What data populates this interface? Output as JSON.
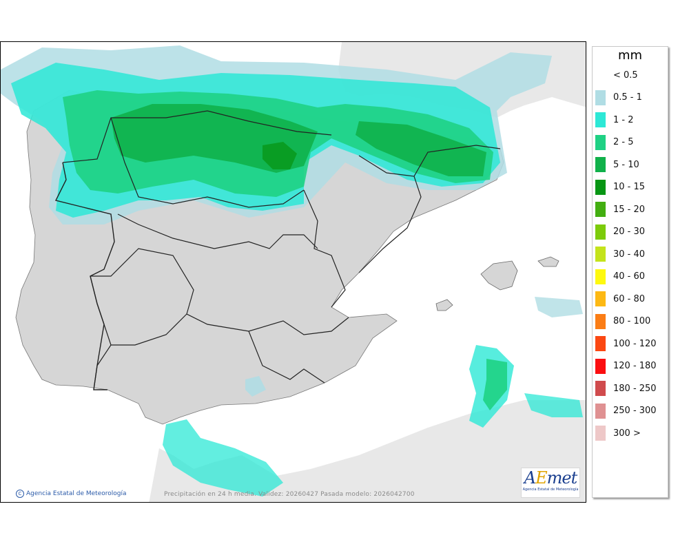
{
  "legend": {
    "unit": "mm",
    "items": [
      {
        "label": "< 0.5",
        "color": null
      },
      {
        "label": "0.5 - 1",
        "color": "#b0dde4"
      },
      {
        "label": "1 - 2",
        "color": "#2de8d6"
      },
      {
        "label": "2 - 5",
        "color": "#1fd184"
      },
      {
        "label": "5 - 10",
        "color": "#10b14a"
      },
      {
        "label": "10 - 15",
        "color": "#079614"
      },
      {
        "label": "15 - 20",
        "color": "#43ae11"
      },
      {
        "label": "20 - 30",
        "color": "#7ccb0a"
      },
      {
        "label": "30 - 40",
        "color": "#c4e31b"
      },
      {
        "label": "40 - 60",
        "color": "#fef90f"
      },
      {
        "label": "60 - 80",
        "color": "#fdb914"
      },
      {
        "label": "80 - 100",
        "color": "#fb7d15"
      },
      {
        "label": "100 - 120",
        "color": "#fb4712"
      },
      {
        "label": "120 - 180",
        "color": "#fb0e10"
      },
      {
        "label": "180 - 250",
        "color": "#d04b4d"
      },
      {
        "label": "250 - 300",
        "color": "#df9192"
      },
      {
        "label": "300 >",
        "color": "#eec8c8"
      }
    ]
  },
  "map": {
    "credit": "Agencia Estatal de Meteorología",
    "caption": "Precipitación en 24 h media. Validez: 20260427 Pasada modelo: 2026042700",
    "logo": {
      "text_main": "AEmet",
      "subtitle": "Agencia Estatal de Meteorología"
    },
    "colors": {
      "land": "#d6d6d6",
      "foreign_land": "#e8e8e8",
      "sea": "#ffffff",
      "border": "#222222"
    }
  }
}
